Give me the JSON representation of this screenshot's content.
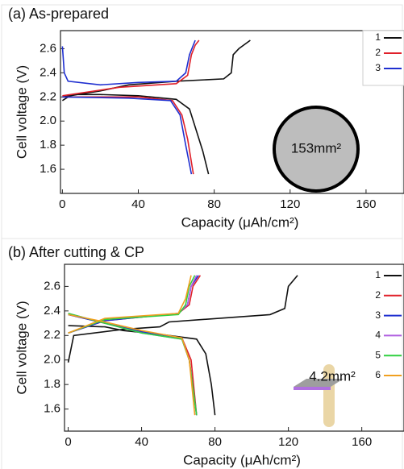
{
  "chart_data": [
    {
      "type": "line",
      "title": "(a) As-prepared",
      "x_label": "Capacity (μAh/cm²)",
      "y_label": "Cell voltage (V)",
      "xlim": [
        -1,
        180
      ],
      "ylim": [
        1.4,
        2.75
      ],
      "xticks": [
        0,
        40,
        80,
        120,
        160
      ],
      "yticks": [
        1.6,
        1.8,
        {
          "value": 2,
          "label": "2.0"
        },
        2.2,
        2.4,
        2.6
      ],
      "annotation": "153mm²",
      "series": [
        {
          "name": "1",
          "color": "#111111",
          "x": [
            0,
            20,
            35,
            60,
            85,
            89,
            90,
            93,
            99,
            null,
            0,
            5,
            20,
            40,
            60,
            67,
            70,
            74,
            77
          ],
          "values": [
            2.2,
            2.25,
            2.3,
            2.33,
            2.35,
            2.4,
            2.55,
            2.6,
            2.67,
            null,
            2.17,
            2.22,
            2.22,
            2.21,
            2.18,
            2.1,
            1.95,
            1.75,
            1.56
          ]
        },
        {
          "name": "2",
          "color": "#e0202a",
          "x": [
            0,
            30,
            60,
            66,
            68,
            70,
            72,
            null,
            0,
            40,
            58,
            63,
            66,
            69
          ],
          "values": [
            2.21,
            2.28,
            2.31,
            2.38,
            2.55,
            2.63,
            2.67,
            null,
            2.2,
            2.2,
            2.17,
            2.05,
            1.85,
            1.56
          ]
        },
        {
          "name": "3",
          "color": "#1f2fd0",
          "x": [
            0,
            1,
            3,
            20,
            40,
            60,
            65,
            67,
            70,
            null,
            0,
            35,
            57,
            62,
            65,
            68
          ],
          "values": [
            2.62,
            2.4,
            2.33,
            2.3,
            2.32,
            2.33,
            2.4,
            2.55,
            2.67,
            null,
            2.2,
            2.19,
            2.17,
            2.05,
            1.8,
            1.56
          ]
        }
      ]
    },
    {
      "type": "line",
      "title": "(b) After cutting & CP",
      "x_label": "Capacity (μAh/cm²)",
      "y_label": "Cell voltage (V)",
      "xlim": [
        -2,
        183
      ],
      "ylim": [
        1.42,
        2.78
      ],
      "xticks": [
        0,
        40,
        80,
        120,
        160
      ],
      "yticks": [
        1.6,
        1.8,
        {
          "value": 2,
          "label": "2.0"
        },
        2.2,
        2.4,
        2.6
      ],
      "annotation": "4.2mm²",
      "series": [
        {
          "name": "1",
          "color": "#111111",
          "x": [
            0,
            3,
            30,
            50,
            55,
            110,
            118,
            120,
            125,
            null,
            0,
            20,
            30,
            50,
            70,
            75,
            78,
            80
          ],
          "values": [
            1.98,
            2.2,
            2.25,
            2.27,
            2.31,
            2.37,
            2.42,
            2.6,
            2.69,
            null,
            2.28,
            2.27,
            2.24,
            2.21,
            2.17,
            2.05,
            1.8,
            1.55
          ]
        },
        {
          "name": "2",
          "color": "#e0202a",
          "x": [
            0,
            20,
            60,
            66,
            68,
            72,
            null,
            0,
            20,
            40,
            62,
            67,
            70
          ],
          "values": [
            2.22,
            2.32,
            2.38,
            2.45,
            2.6,
            2.69,
            null,
            2.37,
            2.3,
            2.23,
            2.18,
            2.0,
            1.55
          ]
        },
        {
          "name": "3",
          "color": "#1f2fd0",
          "x": [
            0,
            20,
            60,
            65,
            67,
            71,
            null,
            0,
            20,
            40,
            62,
            66,
            70
          ],
          "values": [
            2.22,
            2.32,
            2.38,
            2.45,
            2.6,
            2.69,
            null,
            2.37,
            2.3,
            2.23,
            2.18,
            2.0,
            1.55
          ]
        },
        {
          "name": "4",
          "color": "#b060e0",
          "x": [
            0,
            20,
            60,
            65,
            67,
            70,
            null,
            0,
            20,
            40,
            62,
            66,
            70
          ],
          "values": [
            2.22,
            2.33,
            2.38,
            2.45,
            2.6,
            2.69,
            null,
            2.38,
            2.3,
            2.22,
            2.17,
            2.0,
            1.55
          ]
        },
        {
          "name": "5",
          "color": "#30d040",
          "x": [
            0,
            20,
            60,
            64,
            66,
            69,
            null,
            0,
            20,
            40,
            62,
            66,
            70
          ],
          "values": [
            2.22,
            2.33,
            2.37,
            2.45,
            2.6,
            2.69,
            null,
            2.38,
            2.3,
            2.22,
            2.17,
            2.0,
            1.55
          ]
        },
        {
          "name": "6",
          "color": "#f0a020",
          "x": [
            0,
            20,
            60,
            64,
            67,
            null,
            0,
            20,
            40,
            62,
            66,
            69
          ],
          "values": [
            2.22,
            2.34,
            2.38,
            2.5,
            2.69,
            null,
            2.37,
            2.31,
            2.24,
            2.18,
            2.0,
            1.55
          ]
        }
      ]
    }
  ]
}
